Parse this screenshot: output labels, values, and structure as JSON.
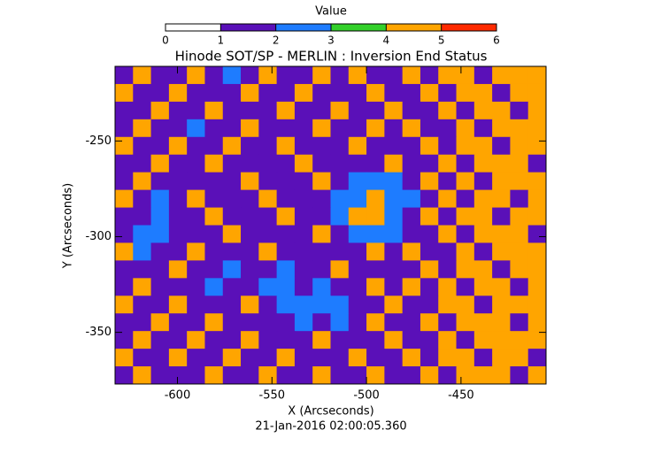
{
  "chart_data": {
    "type": "heatmap",
    "title": "Hinode SOT/SP - MERLIN : Inversion End Status",
    "x_label": "X (Arcseconds)",
    "y_label": "Y (Arcseconds)",
    "footer": "21-Jan-2016 02:00:05.360",
    "colorbar": {
      "label": "Value",
      "ticks": [
        0,
        1,
        2,
        3,
        4,
        5,
        6
      ],
      "colors": [
        "#ffffff",
        "#5a10b8",
        "#1e7cff",
        "#33d02a",
        "#ffa500",
        "#ff2a00"
      ]
    },
    "xlim": [
      -633,
      -405
    ],
    "ylim": [
      -211,
      -377
    ],
    "xticks": [
      -600,
      -550,
      -500,
      -450
    ],
    "yticks": [
      -250,
      -300,
      -350
    ],
    "z": [
      [
        1,
        4,
        1,
        1,
        4,
        1,
        2,
        1,
        4,
        1,
        1,
        4,
        1,
        4,
        1,
        1,
        4,
        1,
        4,
        4,
        1,
        4,
        4,
        4
      ],
      [
        4,
        1,
        1,
        4,
        1,
        1,
        1,
        4,
        1,
        1,
        4,
        1,
        1,
        1,
        4,
        1,
        1,
        4,
        1,
        4,
        4,
        1,
        4,
        4
      ],
      [
        1,
        1,
        4,
        1,
        1,
        4,
        1,
        1,
        1,
        4,
        1,
        1,
        4,
        1,
        1,
        4,
        1,
        1,
        4,
        1,
        4,
        4,
        1,
        4
      ],
      [
        1,
        4,
        1,
        1,
        2,
        1,
        1,
        4,
        1,
        1,
        1,
        4,
        1,
        1,
        4,
        1,
        4,
        1,
        1,
        4,
        1,
        4,
        4,
        4
      ],
      [
        4,
        1,
        1,
        4,
        1,
        1,
        4,
        1,
        1,
        4,
        1,
        1,
        1,
        4,
        1,
        1,
        1,
        4,
        1,
        4,
        4,
        1,
        4,
        4
      ],
      [
        1,
        1,
        4,
        1,
        1,
        4,
        1,
        1,
        1,
        1,
        4,
        1,
        1,
        1,
        1,
        4,
        1,
        1,
        4,
        1,
        4,
        4,
        4,
        1
      ],
      [
        1,
        4,
        1,
        1,
        1,
        1,
        1,
        4,
        1,
        1,
        1,
        4,
        1,
        2,
        2,
        2,
        1,
        4,
        1,
        4,
        1,
        4,
        4,
        4
      ],
      [
        4,
        1,
        2,
        1,
        4,
        1,
        1,
        1,
        4,
        1,
        1,
        1,
        2,
        2,
        4,
        2,
        2,
        1,
        4,
        1,
        4,
        4,
        1,
        4
      ],
      [
        1,
        1,
        2,
        1,
        1,
        4,
        1,
        1,
        1,
        4,
        1,
        1,
        2,
        4,
        4,
        2,
        1,
        4,
        1,
        4,
        4,
        1,
        4,
        4
      ],
      [
        1,
        2,
        2,
        1,
        1,
        1,
        4,
        1,
        1,
        1,
        1,
        4,
        1,
        2,
        2,
        2,
        1,
        1,
        4,
        1,
        4,
        4,
        4,
        1
      ],
      [
        4,
        2,
        1,
        1,
        4,
        1,
        1,
        1,
        4,
        1,
        1,
        1,
        1,
        1,
        4,
        1,
        4,
        1,
        1,
        4,
        1,
        4,
        4,
        4
      ],
      [
        1,
        1,
        1,
        4,
        1,
        1,
        2,
        1,
        1,
        2,
        1,
        1,
        4,
        1,
        1,
        1,
        1,
        4,
        1,
        4,
        4,
        1,
        4,
        4
      ],
      [
        1,
        4,
        1,
        1,
        1,
        2,
        1,
        1,
        2,
        2,
        1,
        2,
        1,
        1,
        4,
        1,
        4,
        1,
        4,
        1,
        4,
        4,
        1,
        4
      ],
      [
        4,
        1,
        1,
        4,
        1,
        1,
        1,
        4,
        1,
        2,
        2,
        2,
        2,
        1,
        1,
        4,
        1,
        1,
        4,
        4,
        1,
        4,
        4,
        4
      ],
      [
        1,
        1,
        4,
        1,
        1,
        4,
        1,
        1,
        1,
        1,
        2,
        1,
        2,
        1,
        4,
        1,
        1,
        4,
        1,
        4,
        4,
        4,
        1,
        4
      ],
      [
        1,
        4,
        1,
        1,
        4,
        1,
        1,
        4,
        1,
        1,
        1,
        4,
        1,
        1,
        1,
        4,
        1,
        1,
        4,
        1,
        4,
        4,
        4,
        4
      ],
      [
        4,
        1,
        1,
        4,
        1,
        1,
        4,
        1,
        1,
        4,
        1,
        1,
        1,
        4,
        1,
        1,
        4,
        1,
        4,
        4,
        1,
        4,
        4,
        1
      ],
      [
        1,
        4,
        1,
        1,
        1,
        4,
        1,
        1,
        4,
        1,
        1,
        4,
        1,
        1,
        4,
        1,
        1,
        4,
        1,
        4,
        4,
        4,
        1,
        4
      ]
    ]
  }
}
